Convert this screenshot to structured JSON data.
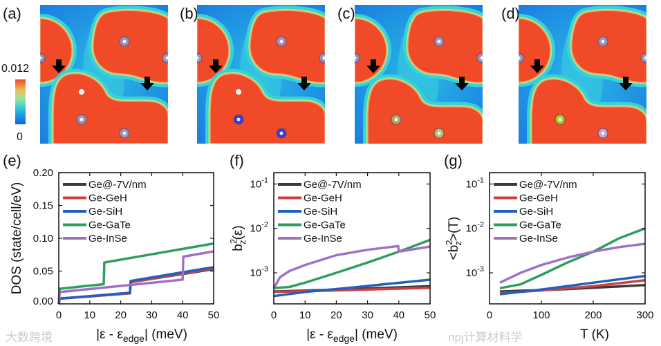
{
  "panel_labels": [
    "(a)",
    "(b)",
    "(c)",
    "(d)",
    "(e)",
    "(f)",
    "(g)"
  ],
  "colorbar": {
    "max_label": "0.012",
    "min_label": "0",
    "colors": [
      "#1a5fe0",
      "#22b8e0",
      "#8be8a0",
      "#f0c060",
      "#f04a28"
    ]
  },
  "maps": [
    {
      "atom_colors": [
        "#9a92b8",
        "#9a92b8",
        "#9a92b8",
        "#ffffff",
        "#9a92b8",
        "#9a92b8"
      ]
    },
    {
      "atom_colors": [
        "#9a92b8",
        "#9a92b8",
        "#9a92b8",
        "#ffffff",
        "#3a3ad8",
        "#3a3ad8"
      ]
    },
    {
      "atom_colors": [
        "#9a92b8",
        "#9a92b8",
        "#9a92b8",
        "#f04a28",
        "#b0a860",
        "#b8c070"
      ]
    },
    {
      "atom_colors": [
        "#9a92b8",
        "#9a92b8",
        "#9a92b8",
        "#f04a28",
        "#a8d020",
        "#c8a0d0"
      ]
    }
  ],
  "watermarks": [
    "大数跨境",
    "npj计算材料学"
  ],
  "chart_data": [
    {
      "type": "line",
      "panel": "(e)",
      "title": "",
      "ylabel": "DOS (state/cell/eV)",
      "xlabel": {
        "main": "|ε - ε",
        "sub": "edge",
        "tail": "| (meV)"
      },
      "xlim": [
        0,
        50
      ],
      "ylim": [
        0,
        0.2
      ],
      "yscale": "linear",
      "xticks": [
        0,
        10,
        20,
        30,
        40,
        50
      ],
      "xtick_labels": [
        "0",
        "10",
        "20",
        "30",
        "40",
        "50"
      ],
      "yticks": [
        0,
        0.05,
        0.1,
        0.15,
        0.2
      ],
      "ytick_labels": [
        "0.00",
        "0.05",
        "0.10",
        "0.15",
        "0.20"
      ],
      "legend": "top-left",
      "series": [
        {
          "name": "Ge@-7V/nm",
          "color": "#3a3a3a",
          "x": [
            0,
            0.3,
            23,
            23.2,
            50
          ],
          "y": [
            0,
            0.008,
            0.016,
            0.033,
            0.053
          ]
        },
        {
          "name": "Ge-GeH",
          "color": "#d04040",
          "x": [
            0,
            0.3,
            23,
            23.2,
            50
          ],
          "y": [
            0,
            0.008,
            0.016,
            0.033,
            0.054
          ]
        },
        {
          "name": "Ge-SiH",
          "color": "#2060c0",
          "x": [
            0,
            0.3,
            23,
            23.2,
            50
          ],
          "y": [
            0,
            0.008,
            0.017,
            0.035,
            0.056
          ]
        },
        {
          "name": "Ge-GaTe",
          "color": "#2e9e5e",
          "x": [
            0,
            0.3,
            14.5,
            14.7,
            50
          ],
          "y": [
            0,
            0.023,
            0.03,
            0.063,
            0.092
          ]
        },
        {
          "name": "Ge-InSe",
          "color": "#a070c8",
          "x": [
            0,
            0.3,
            40,
            40.2,
            50
          ],
          "y": [
            0,
            0.018,
            0.037,
            0.072,
            0.08
          ]
        }
      ]
    },
    {
      "type": "line",
      "panel": "(f)",
      "title": "",
      "ylabel": {
        "main": "b",
        "sup": "2",
        "sub": "z",
        "tail": "(ε)"
      },
      "xlabel": {
        "main": "|ε - ε",
        "sub": "edge",
        "tail": "| (meV)"
      },
      "xlim": [
        0,
        50
      ],
      "ylim": [
        0.0002,
        0.18
      ],
      "yscale": "log",
      "xticks": [
        0,
        10,
        20,
        30,
        40,
        50
      ],
      "xtick_labels": [
        "0",
        "10",
        "20",
        "30",
        "40",
        "50"
      ],
      "yticks": [
        0.001,
        0.01,
        0.1
      ],
      "ytick_labels": [
        {
          "base": "10",
          "exp": "-3"
        },
        {
          "base": "10",
          "exp": "-2"
        },
        {
          "base": "10",
          "exp": "-1"
        }
      ],
      "legend": "top-left",
      "series": [
        {
          "name": "Ge@-7V/nm",
          "color": "#3a3a3a",
          "x": [
            0,
            25,
            50
          ],
          "y": [
            0.00038,
            0.00043,
            0.0005
          ]
        },
        {
          "name": "Ge-GeH",
          "color": "#d04040",
          "x": [
            0,
            25,
            50
          ],
          "y": [
            0.00037,
            0.00041,
            0.00046
          ]
        },
        {
          "name": "Ge-SiH",
          "color": "#2060c0",
          "x": [
            0,
            10,
            23,
            35,
            50
          ],
          "y": [
            0.0003,
            0.00037,
            0.00045,
            0.00055,
            0.0007
          ]
        },
        {
          "name": "Ge-GaTe",
          "color": "#2e9e5e",
          "x": [
            0,
            5,
            10,
            20,
            30,
            40,
            50
          ],
          "y": [
            0.00045,
            0.00048,
            0.0006,
            0.001,
            0.0017,
            0.003,
            0.0055
          ]
        },
        {
          "name": "Ge-InSe",
          "color": "#a070c8",
          "x": [
            0,
            2,
            5,
            10,
            20,
            30,
            39.8,
            40,
            50
          ],
          "y": [
            0.00045,
            0.0008,
            0.0011,
            0.0015,
            0.0025,
            0.0033,
            0.004,
            0.003,
            0.0039
          ]
        }
      ]
    },
    {
      "type": "line",
      "panel": "(g)",
      "title": "",
      "ylabel": {
        "main": "<b",
        "sup": "2",
        "sub": "z",
        "tail": ">(T)"
      },
      "xlabel": {
        "main": "T (K)",
        "sub": "",
        "tail": ""
      },
      "xlim": [
        0,
        300
      ],
      "ylim": [
        0.0002,
        0.18
      ],
      "yscale": "log",
      "xticks": [
        0,
        100,
        200,
        300
      ],
      "xtick_labels": [
        "0",
        "100",
        "200",
        "300"
      ],
      "yticks": [
        0.001,
        0.01,
        0.1
      ],
      "ytick_labels": [
        {
          "base": "10",
          "exp": "-3"
        },
        {
          "base": "10",
          "exp": "-2"
        },
        {
          "base": "10",
          "exp": "-1"
        }
      ],
      "legend": "top-left",
      "series": [
        {
          "name": "Ge@-7V/nm",
          "color": "#3a3a3a",
          "x": [
            20,
            150,
            300
          ],
          "y": [
            0.00038,
            0.00043,
            0.00053
          ]
        },
        {
          "name": "Ge-GeH",
          "color": "#d04040",
          "x": [
            20,
            100,
            200,
            300
          ],
          "y": [
            0.00035,
            0.0004,
            0.0005,
            0.00068
          ]
        },
        {
          "name": "Ge-SiH",
          "color": "#2060c0",
          "x": [
            20,
            100,
            200,
            300
          ],
          "y": [
            0.00033,
            0.00042,
            0.0006,
            0.00085
          ]
        },
        {
          "name": "Ge-GaTe",
          "color": "#2e9e5e",
          "x": [
            20,
            60,
            100,
            150,
            200,
            250,
            300
          ],
          "y": [
            0.00045,
            0.00055,
            0.0009,
            0.0017,
            0.003,
            0.006,
            0.01
          ]
        },
        {
          "name": "Ge-InSe",
          "color": "#a070c8",
          "x": [
            20,
            60,
            100,
            150,
            200,
            250,
            300
          ],
          "y": [
            0.0006,
            0.001,
            0.0015,
            0.0022,
            0.003,
            0.0038,
            0.0045
          ]
        }
      ]
    }
  ]
}
